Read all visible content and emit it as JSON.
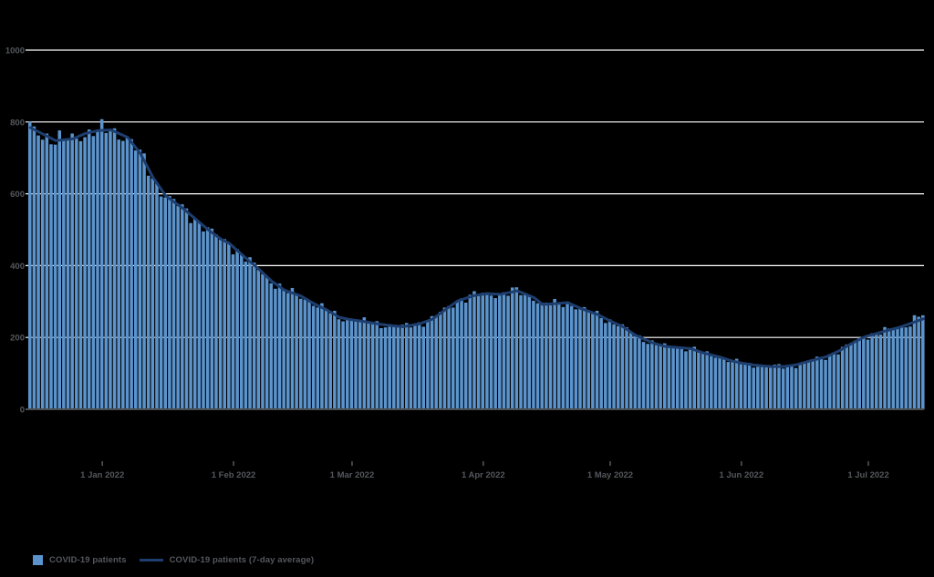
{
  "chart_data": {
    "type": "bar",
    "title": "",
    "description": "Daily COVID-19 patients in hospital with 7-day average overlay",
    "x_axis": {
      "start_date": "2021-12-15",
      "end_date": "2022-07-14",
      "tick_labels": [
        "1 Jan 2022",
        "1 Feb 2022",
        "1 Mar 2022",
        "1 Apr 2022",
        "1 May 2022",
        "1 Jun 2022",
        "1 Jul 2022"
      ],
      "tick_day_offsets": [
        17,
        48,
        76,
        107,
        137,
        168,
        198
      ],
      "total_days": 212
    },
    "y_axis": {
      "min": 0,
      "max": 1000,
      "tick_interval": 200,
      "tick_labels": [
        "0",
        "200",
        "400",
        "600",
        "800",
        "1000"
      ],
      "gridline_values": [
        200,
        400,
        600,
        800,
        1000
      ]
    },
    "grid": "horizontal white lines, appearing dotted where bars overlap",
    "legend_position": "bottom-left",
    "background_color": "#000000",
    "gridline_color": "#ffffff",
    "axis_text_color": "#54585d",
    "axis_line_color": "#4c4f52",
    "series": [
      {
        "name": "COVID-19 patients",
        "type": "bar",
        "color": "#5b93cc",
        "note": "one bar per day; daily values closely track the 7-day average line with small variation"
      },
      {
        "name": "COVID-19 patients (7-day average)",
        "type": "line",
        "color": "#1d3e6f",
        "points_day_value": [
          [
            0,
            784
          ],
          [
            3,
            766
          ],
          [
            6,
            748
          ],
          [
            10,
            753
          ],
          [
            13,
            768
          ],
          [
            16,
            776
          ],
          [
            19,
            778
          ],
          [
            23,
            757
          ],
          [
            26,
            712
          ],
          [
            29,
            645
          ],
          [
            32,
            594
          ],
          [
            36,
            560
          ],
          [
            39,
            530
          ],
          [
            42,
            500
          ],
          [
            45,
            474
          ],
          [
            47,
            462
          ],
          [
            51,
            420
          ],
          [
            54,
            390
          ],
          [
            57,
            357
          ],
          [
            60,
            332
          ],
          [
            64,
            315
          ],
          [
            67,
            294
          ],
          [
            70,
            277
          ],
          [
            73,
            256
          ],
          [
            75,
            251
          ],
          [
            79,
            244
          ],
          [
            82,
            238
          ],
          [
            85,
            233
          ],
          [
            88,
            230
          ],
          [
            92,
            238
          ],
          [
            95,
            251
          ],
          [
            98,
            277
          ],
          [
            101,
            302
          ],
          [
            105,
            317
          ],
          [
            108,
            322
          ],
          [
            111,
            320
          ],
          [
            114,
            327
          ],
          [
            115,
            330
          ],
          [
            119,
            311
          ],
          [
            121,
            292
          ],
          [
            124,
            294
          ],
          [
            127,
            297
          ],
          [
            130,
            281
          ],
          [
            134,
            264
          ],
          [
            137,
            246
          ],
          [
            140,
            230
          ],
          [
            143,
            206
          ],
          [
            147,
            185
          ],
          [
            150,
            175
          ],
          [
            153,
            172
          ],
          [
            156,
            169
          ],
          [
            159,
            157
          ],
          [
            163,
            145
          ],
          [
            166,
            134
          ],
          [
            168,
            129
          ],
          [
            171,
            123
          ],
          [
            175,
            119
          ],
          [
            178,
            119
          ],
          [
            181,
            124
          ],
          [
            184,
            134
          ],
          [
            188,
            146
          ],
          [
            191,
            162
          ],
          [
            194,
            183
          ],
          [
            197,
            201
          ],
          [
            202,
            218
          ],
          [
            205,
            227
          ],
          [
            208,
            239
          ],
          [
            211,
            252
          ]
        ]
      }
    ]
  },
  "legend": {
    "items": [
      {
        "label": "COVID-19 patients"
      },
      {
        "label": "COVID-19 patients (7-day average)"
      }
    ]
  }
}
